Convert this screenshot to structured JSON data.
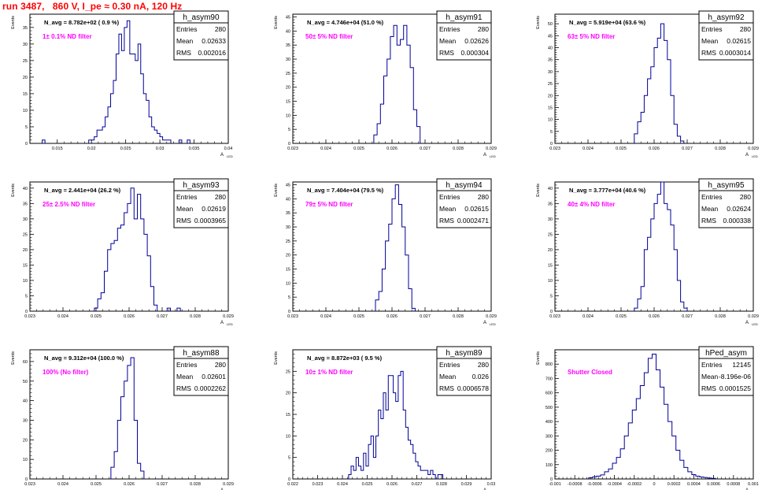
{
  "page_title": "run 3487,   860 V, I_pe ≈ 0.30 nA, 120 Hz",
  "style": {
    "hist_color": "#000099",
    "annotation_color": "#ff00ff",
    "title_color": "#ff0000"
  },
  "chart_data": [
    {
      "type": "histogram",
      "title": "h_asym90",
      "ylabel": "Events",
      "xlabel": "A_{LED}",
      "navg": "N_avg = 8.782e+02 ( 0.9 %)",
      "annotation": "1± 0.1% ND filter",
      "stats": {
        "Entries": "280",
        "Mean": "0.02633",
        "RMS": "0.002016"
      },
      "xlim": [
        0.011,
        0.04
      ],
      "ylim": [
        0,
        39
      ],
      "xticks": [
        "0.015",
        "0.02",
        "0.025",
        "0.03",
        "0.035",
        "0.04"
      ],
      "yticks": [
        "5",
        "10",
        "15",
        "20",
        "25",
        "30",
        "35"
      ],
      "x": [
        0.013,
        0.0198,
        0.0202,
        0.0206,
        0.021,
        0.0214,
        0.0218,
        0.0222,
        0.0226,
        0.023,
        0.0234,
        0.0238,
        0.0242,
        0.0246,
        0.025,
        0.0254,
        0.0258,
        0.0262,
        0.0266,
        0.027,
        0.0274,
        0.0278,
        0.0282,
        0.0286,
        0.029,
        0.0294,
        0.0298,
        0.0302,
        0.0306,
        0.031,
        0.0314,
        0.033,
        0.0342
      ],
      "y": [
        1,
        1,
        1,
        2,
        4,
        4,
        5,
        8,
        11,
        15,
        19,
        27,
        33,
        28,
        35,
        37,
        27,
        27,
        25,
        30,
        21,
        15,
        13,
        8,
        5,
        4,
        3,
        2,
        1,
        1,
        1,
        1,
        1
      ]
    },
    {
      "type": "histogram",
      "title": "h_asym91",
      "ylabel": "Events",
      "xlabel": "A_{LED}",
      "navg": "N_avg = 4.746e+04 (51.0 %)",
      "annotation": "50± 5% ND filter",
      "stats": {
        "Entries": "280",
        "Mean": "0.02626",
        "RMS": "0.000304"
      },
      "xlim": [
        0.023,
        0.029
      ],
      "ylim": [
        0,
        46
      ],
      "xticks": [
        "0.023",
        "0.024",
        "0.025",
        "0.026",
        "0.027",
        "0.028",
        "0.029"
      ],
      "yticks": [
        "5",
        "10",
        "15",
        "20",
        "25",
        "30",
        "35",
        "40",
        "45"
      ],
      "x": [
        0.0255,
        0.0256,
        0.0257,
        0.0258,
        0.0259,
        0.026,
        0.0261,
        0.0262,
        0.0263,
        0.0264,
        0.0265,
        0.0266,
        0.0267,
        0.0268
      ],
      "y": [
        3,
        7,
        14,
        24,
        30,
        38,
        42,
        35,
        37,
        42,
        35,
        27,
        12,
        6
      ]
    },
    {
      "type": "histogram",
      "title": "h_asym92",
      "ylabel": "Events",
      "xlabel": "A_{LED}",
      "navg": "N_avg = 5.919e+04 (63.6 %)",
      "annotation": "63± 5% ND filter",
      "stats": {
        "Entries": "280",
        "Mean": "0.02615",
        "RMS": "0.0003014"
      },
      "xlim": [
        0.023,
        0.029
      ],
      "ylim": [
        0,
        54
      ],
      "xticks": [
        "0.023",
        "0.024",
        "0.025",
        "0.026",
        "0.027",
        "0.028",
        "0.029"
      ],
      "yticks": [
        "5",
        "10",
        "15",
        "20",
        "25",
        "30",
        "35",
        "40",
        "45",
        "50"
      ],
      "x": [
        0.02545,
        0.02555,
        0.02565,
        0.02575,
        0.02585,
        0.02595,
        0.02605,
        0.02615,
        0.02625,
        0.02635,
        0.02645,
        0.02655,
        0.02665,
        0.02675,
        0.02685
      ],
      "y": [
        4,
        9,
        13,
        20,
        27,
        32,
        40,
        44,
        50,
        43,
        35,
        20,
        8,
        3,
        1
      ]
    },
    {
      "type": "histogram",
      "title": "h_asym93",
      "ylabel": "Events",
      "xlabel": "A_{LED}",
      "navg": "N_avg = 2.441e+04 (26.2 %)",
      "annotation": "25± 2.5% ND filter",
      "stats": {
        "Entries": "280",
        "Mean": "0.02619",
        "RMS": "0.0003965"
      },
      "xlim": [
        0.023,
        0.029
      ],
      "ylim": [
        0,
        42
      ],
      "xticks": [
        "0.023",
        "0.024",
        "0.025",
        "0.026",
        "0.027",
        "0.028",
        "0.029"
      ],
      "yticks": [
        "5",
        "10",
        "15",
        "20",
        "25",
        "30",
        "35",
        "40"
      ],
      "x": [
        0.025,
        0.0251,
        0.0252,
        0.0253,
        0.0254,
        0.0255,
        0.0256,
        0.0257,
        0.0258,
        0.0259,
        0.026,
        0.0261,
        0.0262,
        0.0263,
        0.0264,
        0.0265,
        0.0266,
        0.0267,
        0.0268,
        0.0272,
        0.0275
      ],
      "y": [
        1,
        4,
        6,
        13,
        20,
        22,
        23,
        27,
        28,
        32,
        35,
        40,
        30,
        38,
        30,
        25,
        18,
        8,
        2,
        1,
        1
      ]
    },
    {
      "type": "histogram",
      "title": "h_asym94",
      "ylabel": "Events",
      "xlabel": "A_{LED}",
      "navg": "N_avg = 7.404e+04 (79.5 %)",
      "annotation": "79± 5% ND filter",
      "stats": {
        "Entries": "280",
        "Mean": "0.02615",
        "RMS": "0.0002471"
      },
      "xlim": [
        0.023,
        0.029
      ],
      "ylim": [
        0,
        46
      ],
      "xticks": [
        "0.023",
        "0.024",
        "0.025",
        "0.026",
        "0.027",
        "0.028",
        "0.029"
      ],
      "yticks": [
        "5",
        "10",
        "15",
        "20",
        "25",
        "30",
        "35",
        "40",
        "45"
      ],
      "x": [
        0.02555,
        0.02565,
        0.02575,
        0.02585,
        0.02595,
        0.02605,
        0.02615,
        0.02625,
        0.02635,
        0.02645,
        0.02655,
        0.02665
      ],
      "y": [
        4,
        7,
        15,
        25,
        31,
        40,
        45,
        38,
        30,
        20,
        8,
        1
      ]
    },
    {
      "type": "histogram",
      "title": "h_asym95",
      "ylabel": "Events",
      "xlabel": "A_{LED}",
      "navg": "N_avg = 3.777e+04 (40.6 %)",
      "annotation": "40± 4% ND filter",
      "stats": {
        "Entries": "280",
        "Mean": "0.02624",
        "RMS": "0.000338"
      },
      "xlim": [
        0.023,
        0.029
      ],
      "ylim": [
        0,
        42
      ],
      "xticks": [
        "0.023",
        "0.024",
        "0.025",
        "0.026",
        "0.027",
        "0.028",
        "0.029"
      ],
      "yticks": [
        "5",
        "10",
        "15",
        "20",
        "25",
        "30",
        "35",
        "40"
      ],
      "x": [
        0.02545,
        0.02555,
        0.02565,
        0.02575,
        0.02585,
        0.02595,
        0.02605,
        0.02615,
        0.02625,
        0.02635,
        0.02645,
        0.02655,
        0.02665,
        0.02675,
        0.02685,
        0.02695
      ],
      "y": [
        1,
        4,
        8,
        20,
        24,
        30,
        35,
        38,
        42,
        35,
        33,
        28,
        20,
        10,
        3,
        1
      ]
    },
    {
      "type": "histogram",
      "title": "h_asym88",
      "ylabel": "Events",
      "xlabel": "A_{LED}",
      "navg": "N_avg = 9.312e+04 (100.0 %)",
      "annotation": "100% (No filter)",
      "stats": {
        "Entries": "280",
        "Mean": "0.02601",
        "RMS": "0.0002262"
      },
      "xlim": [
        0.023,
        0.029
      ],
      "ylim": [
        0,
        66
      ],
      "xticks": [
        "0.023",
        "0.024",
        "0.025",
        "0.026",
        "0.027",
        "0.028",
        "0.029"
      ],
      "yticks": [
        "10",
        "20",
        "30",
        "40",
        "50",
        "60"
      ],
      "x": [
        0.0255,
        0.0256,
        0.0257,
        0.0258,
        0.0259,
        0.026,
        0.0261,
        0.0262,
        0.0263,
        0.0264
      ],
      "y": [
        6,
        14,
        30,
        42,
        50,
        58,
        62,
        30,
        8,
        4
      ]
    },
    {
      "type": "histogram",
      "title": "h_asym89",
      "ylabel": "Events",
      "xlabel": "A_{LED}",
      "navg": "N_avg = 8.872e+03 ( 9.5 %)",
      "annotation": "10± 1% ND filter",
      "stats": {
        "Entries": "280",
        "Mean": "0.026",
        "RMS": "0.0006578"
      },
      "xlim": [
        0.022,
        0.03
      ],
      "ylim": [
        0,
        30
      ],
      "xticks": [
        "0.022",
        "0.023",
        "0.024",
        "0.025",
        "0.026",
        "0.027",
        "0.028",
        "0.029",
        "0.03"
      ],
      "yticks": [
        "5",
        "10",
        "15",
        "20",
        "25"
      ],
      "x": [
        0.0243,
        0.0244,
        0.0245,
        0.0246,
        0.0247,
        0.0248,
        0.0249,
        0.025,
        0.0251,
        0.0252,
        0.0253,
        0.0254,
        0.0255,
        0.0256,
        0.0257,
        0.0258,
        0.0259,
        0.026,
        0.0261,
        0.0262,
        0.0263,
        0.0264,
        0.0265,
        0.0266,
        0.0267,
        0.0268,
        0.0269,
        0.027,
        0.0271,
        0.0272,
        0.0273,
        0.0274,
        0.0275,
        0.0276,
        0.0277,
        0.0279,
        0.028
      ],
      "y": [
        1,
        3,
        2,
        5,
        3,
        2,
        6,
        3,
        8,
        10,
        5,
        10,
        16,
        14,
        20,
        16,
        24,
        24,
        20,
        18,
        24,
        25,
        16,
        12,
        9,
        8,
        6,
        4,
        3,
        2,
        2,
        2,
        1,
        2,
        1,
        1,
        1
      ]
    },
    {
      "type": "histogram",
      "title": "hPed_asym",
      "ylabel": "Events",
      "xlabel": "A_{LED}",
      "navg": "",
      "annotation": "Shutter Closed",
      "stats": {
        "Entries": "12145",
        "Mean": "-8.196e-06",
        "RMS": "0.0001525"
      },
      "xlim": [
        -0.001,
        0.001
      ],
      "ylim": [
        0,
        900
      ],
      "xticks": [
        "-0.001",
        "-0.0008",
        "-0.0006",
        "-0.0004",
        "-0.0002",
        "0",
        "0.0002",
        "0.0004",
        "0.0006",
        "0.0008",
        "0.001"
      ],
      "yticks": [
        "100",
        "200",
        "300",
        "400",
        "500",
        "600",
        "700",
        "800"
      ],
      "x": [
        -0.00064,
        -0.0006,
        -0.00056,
        -0.00052,
        -0.00048,
        -0.00044,
        -0.0004,
        -0.00036,
        -0.00032,
        -0.00028,
        -0.00024,
        -0.0002,
        -0.00016,
        -0.00012,
        -8e-05,
        -4e-05,
        0.0,
        4e-05,
        8e-05,
        0.00012,
        0.00016,
        0.0002,
        0.00024,
        0.00028,
        0.00032,
        0.00036,
        0.0004,
        0.00044,
        0.00048,
        0.00052,
        0.00056,
        0.0006
      ],
      "y": [
        8,
        15,
        20,
        28,
        50,
        70,
        110,
        150,
        210,
        300,
        390,
        480,
        560,
        650,
        740,
        840,
        870,
        760,
        640,
        520,
        400,
        300,
        200,
        130,
        80,
        50,
        30,
        20,
        14,
        10,
        6,
        4
      ]
    }
  ]
}
